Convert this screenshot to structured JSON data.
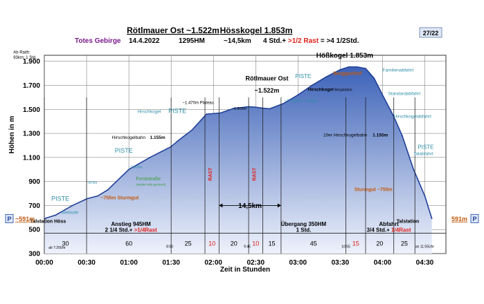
{
  "header": {
    "title_left": "Rötlmauer Ost ~1.522m",
    "title_right": "Hösskogel 1.853m",
    "range": "Totes Gebirge",
    "date": "14.4.2022",
    "elev_gain": "1295HM",
    "distance": "~14,5km",
    "time": "4 Std.+ >1/2 Rast = >4 1/2Std.",
    "page": "27/22"
  },
  "colors": {
    "fill_top": "#3d62b8",
    "fill_bottom": "#eef2fb",
    "profile_line": "#1f3f98",
    "red": "#e0201c",
    "orange": "#c05a10",
    "teal": "#2f8fa8",
    "title_purple": "#7a1a8a",
    "grid": "#6a6a6a"
  },
  "chart_data": {
    "type": "area",
    "title": "Rötlmauer Ost ~1.522m Hösskogel 1.853m",
    "xlabel": "Zeit in Stunden",
    "ylabel": "Höhen in m",
    "xlim": [
      0,
      285
    ],
    "ylim": [
      300,
      1950
    ],
    "x_ticks": [
      {
        "v": 0,
        "label": "00:00"
      },
      {
        "v": 30,
        "label": "00:30"
      },
      {
        "v": 60,
        "label": "01:00"
      },
      {
        "v": 90,
        "label": "01:30"
      },
      {
        "v": 120,
        "label": "02:00"
      },
      {
        "v": 150,
        "label": "02:30"
      },
      {
        "v": 180,
        "label": "03:00"
      },
      {
        "v": 210,
        "label": "03:30"
      },
      {
        "v": 240,
        "label": "04:00"
      },
      {
        "v": 270,
        "label": "04:30"
      }
    ],
    "y_ticks": [
      {
        "v": 300,
        "label": "300"
      },
      {
        "v": 500,
        "label": "500"
      },
      {
        "v": 700,
        "label": "700"
      },
      {
        "v": 900,
        "label": "900"
      },
      {
        "v": 1100,
        "label": "1.100"
      },
      {
        "v": 1300,
        "label": "1.300"
      },
      {
        "v": 1500,
        "label": "1.500"
      },
      {
        "v": 1700,
        "label": "1.700"
      },
      {
        "v": 1900,
        "label": "1.900"
      }
    ],
    "profile": {
      "x": [
        0,
        8,
        20,
        30,
        38,
        45,
        60,
        75,
        90,
        95,
        105,
        115,
        125,
        130,
        135,
        140,
        145,
        150,
        155,
        160,
        170,
        180,
        190,
        200,
        210,
        216,
        222,
        228,
        234,
        240,
        248,
        254,
        262,
        270,
        275
      ],
      "y": [
        591,
        620,
        700,
        755,
        780,
        830,
        1000,
        1100,
        1190,
        1240,
        1330,
        1460,
        1470,
        1490,
        1510,
        1515,
        1522,
        1518,
        1510,
        1505,
        1550,
        1620,
        1700,
        1770,
        1830,
        1853,
        1853,
        1840,
        1760,
        1620,
        1440,
        1280,
        1000,
        780,
        591
      ]
    },
    "verticals": [
      0,
      30,
      90,
      114,
      124,
      145,
      155,
      168,
      214,
      228,
      248,
      263
    ],
    "segments": [
      {
        "x": 15,
        "label": "30",
        "red": false
      },
      {
        "x": 60,
        "label": "60",
        "red": false
      },
      {
        "x": 102,
        "label": "25",
        "red": false
      },
      {
        "x": 119,
        "label": "10",
        "red": true
      },
      {
        "x": 134.5,
        "label": "20",
        "red": false
      },
      {
        "x": 150,
        "label": "10",
        "red": true
      },
      {
        "x": 161.5,
        "label": "15",
        "red": false
      },
      {
        "x": 191,
        "label": "45",
        "red": false
      },
      {
        "x": 221,
        "label": "15",
        "red": true
      },
      {
        "x": 238,
        "label": "20",
        "red": false
      },
      {
        "x": 255.5,
        "label": "25",
        "red": false
      }
    ],
    "rast_labels": [
      {
        "x": 119,
        "y": 960,
        "label": "RAST"
      },
      {
        "x": 150,
        "y": 960,
        "label": "RAST"
      }
    ],
    "annotations": [
      {
        "x": -22,
        "y": 1965,
        "label": "Ab Raith:",
        "size": 6,
        "color": "#000000",
        "anchor": "start",
        "bold": false
      },
      {
        "x": -22,
        "y": 1920,
        "label": "93km; 1 Std.",
        "size": 6,
        "color": "#000000",
        "anchor": "start",
        "bold": false
      },
      {
        "x": 5,
        "y": 740,
        "label": "PISTE",
        "size": 9,
        "color": "#2f8fa8",
        "anchor": "start",
        "bold": false
      },
      {
        "x": 12,
        "y": 630,
        "label": "Steilstufe",
        "size": 6,
        "color": "#2f8fa8",
        "anchor": "start",
        "bold": false
      },
      {
        "x": -10,
        "y": 555,
        "label": "Talstation Höss",
        "size": 7,
        "color": "#000000",
        "anchor": "start",
        "bold": true
      },
      {
        "x": 40,
        "y": 750,
        "label": "~755m Sturmgut",
        "size": 7,
        "color": "#c05a10",
        "anchor": "start",
        "bold": true
      },
      {
        "x": 30,
        "y": 880,
        "label": "~870m",
        "size": 5,
        "color": "#2f8fa8",
        "anchor": "start",
        "bold": false
      },
      {
        "x": 65,
        "y": 910,
        "label": "Forststraße",
        "size": 7,
        "color": "#3a9a3a",
        "anchor": "start",
        "bold": false
      },
      {
        "x": 65,
        "y": 865,
        "label": "(wieder teils geräumt)",
        "size": 4.5,
        "color": "#3a9a3a",
        "anchor": "start",
        "bold": false
      },
      {
        "x": 60,
        "y": 1010,
        "label": "~1.000m",
        "size": 5,
        "color": "#2f8fa8",
        "anchor": "start",
        "bold": false
      },
      {
        "x": 50,
        "y": 1140,
        "label": "PISTE",
        "size": 9,
        "color": "#2f8fa8",
        "anchor": "start",
        "bold": false
      },
      {
        "x": 48,
        "y": 1255,
        "label": "Hirschkogelbahn",
        "size": 6.5,
        "color": "#000000",
        "anchor": "start",
        "bold": false
      },
      {
        "x": 75,
        "y": 1255,
        "label": "1.155m",
        "size": 6.5,
        "color": "#000000",
        "anchor": "start",
        "bold": true
      },
      {
        "x": 66,
        "y": 1470,
        "label": "Hirschkogel",
        "size": 6.5,
        "color": "#2f8fa8",
        "anchor": "start",
        "bold": false
      },
      {
        "x": 88,
        "y": 1470,
        "label": "PISTE",
        "size": 9,
        "color": "#2f8fa8",
        "anchor": "start",
        "bold": false
      },
      {
        "x": 98,
        "y": 1545,
        "label": "~1.470m Plateau",
        "size": 6,
        "color": "#000000",
        "anchor": "start",
        "bold": false
      },
      {
        "x": 133,
        "y": 1495,
        "label": "~1.505m",
        "size": 5.5,
        "color": "#000000",
        "anchor": "start",
        "bold": false
      },
      {
        "x": 158,
        "y": 1740,
        "label": "Rötlmauer Ost",
        "size": 9,
        "color": "#000000",
        "anchor": "middle",
        "bold": true
      },
      {
        "x": 158,
        "y": 1640,
        "label": "~1.522m",
        "size": 9,
        "color": "#000000",
        "anchor": "middle",
        "bold": true
      },
      {
        "x": 170,
        "y": 1555,
        "label": "~1.565m",
        "size": 7,
        "color": "#2f8fa8",
        "anchor": "start",
        "bold": false
      },
      {
        "x": 186,
        "y": 1555,
        "label": "Piste",
        "size": 7,
        "color": "#2f8fa8",
        "anchor": "start",
        "bold": false
      },
      {
        "x": 178,
        "y": 1760,
        "label": "PISTE",
        "size": 8,
        "color": "#2f8fa8",
        "anchor": "start",
        "bold": false
      },
      {
        "x": 187,
        "y": 1655,
        "label": "Hirschkogel",
        "size": 6.5,
        "color": "#000000",
        "anchor": "start",
        "bold": true
      },
      {
        "x": 206,
        "y": 1655,
        "label": "Bergstation",
        "size": 5,
        "color": "#000000",
        "anchor": "start",
        "bold": false
      },
      {
        "x": 193,
        "y": 1930,
        "label": "Hößkogel 1.853m",
        "size": 10,
        "color": "#000000",
        "anchor": "start",
        "bold": true
      },
      {
        "x": 205,
        "y": 1785,
        "label": "Berggasthof",
        "size": 7,
        "color": "#c05a10",
        "anchor": "start",
        "bold": true
      },
      {
        "x": 240,
        "y": 1815,
        "label": "Familienabfahrt",
        "size": 6.5,
        "color": "#2f8fa8",
        "anchor": "start",
        "bold": false
      },
      {
        "x": 244,
        "y": 1620,
        "label": "Standardabfahrt",
        "size": 6.5,
        "color": "#2f8fa8",
        "anchor": "start",
        "bold": false
      },
      {
        "x": 248,
        "y": 1430,
        "label": "Hirschkogelabfahrt",
        "size": 6.5,
        "color": "#2f8fa8",
        "anchor": "start",
        "bold": false
      },
      {
        "x": 198,
        "y": 1275,
        "label": "10er Hirschkogelbahn",
        "size": 6.5,
        "color": "#000000",
        "anchor": "start",
        "bold": false
      },
      {
        "x": 233,
        "y": 1275,
        "label": "1.155m",
        "size": 6.5,
        "color": "#000000",
        "anchor": "start",
        "bold": true
      },
      {
        "x": 265,
        "y": 1170,
        "label": "PISTE",
        "size": 8,
        "color": "#2f8fa8",
        "anchor": "start",
        "bold": false
      },
      {
        "x": 262,
        "y": 1120,
        "label": "Talabfahrt",
        "size": 6.5,
        "color": "#2f8fa8",
        "anchor": "start",
        "bold": false
      },
      {
        "x": 220,
        "y": 820,
        "label": "Sturmgut ~755m",
        "size": 7,
        "color": "#c05a10",
        "anchor": "start",
        "bold": true
      },
      {
        "x": 266,
        "y": 555,
        "label": "Talstation",
        "size": 7,
        "color": "#000000",
        "anchor": "end",
        "bold": true
      },
      {
        "x": 89,
        "y": 350,
        "label": "8:50",
        "size": 5,
        "color": "#000000",
        "anchor": "middle",
        "bold": false
      },
      {
        "x": 144,
        "y": 350,
        "label": "9:45",
        "size": 5,
        "color": "#000000",
        "anchor": "middle",
        "bold": false
      },
      {
        "x": 214,
        "y": 350,
        "label": "10:55",
        "size": 5,
        "color": "#000000",
        "anchor": "middle",
        "bold": false
      },
      {
        "x": 3,
        "y": 340,
        "label": "ab 7:20Uhr",
        "size": 5,
        "color": "#000000",
        "anchor": "start",
        "bold": false
      },
      {
        "x": 270,
        "y": 350,
        "label": "an 11:55Uhr",
        "size": 5,
        "color": "#000000",
        "anchor": "middle",
        "bold": false
      }
    ],
    "phases": [
      {
        "x1": 0,
        "x2": 123,
        "label": "Anstieg 945HM",
        "line2": "2 1/4 Std.+ ",
        "line2_red": ">1/4Rast"
      },
      {
        "x1": 154,
        "x2": 214,
        "label": "Übergang 350HM",
        "line2": "1 Std.",
        "line2_red": ""
      },
      {
        "x1": 214,
        "x2": 275,
        "label": "Abfahrt",
        "line2": "3/4 Std.+ ",
        "line2_red": "1/4Rast"
      }
    ],
    "distance_label": "14,5km",
    "endpoints": [
      {
        "x": -11,
        "y": 591,
        "label": "~591m",
        "side": "left",
        "marker": "P"
      },
      {
        "x": 275,
        "y": 591,
        "label": "591m",
        "side": "right",
        "marker": "P"
      }
    ]
  }
}
